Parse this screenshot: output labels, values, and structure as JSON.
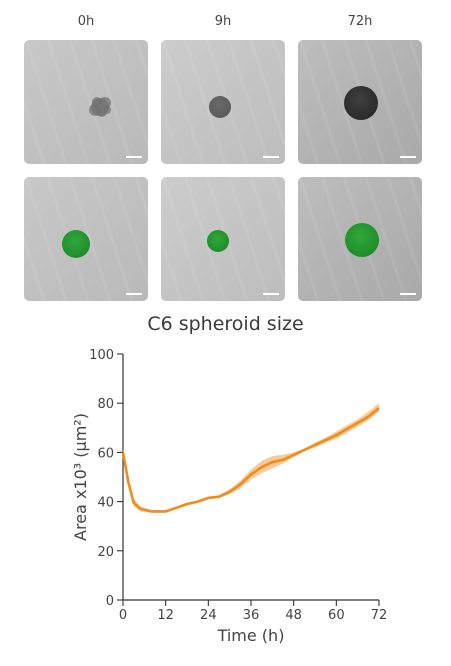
{
  "image_panels": {
    "time_labels": [
      "0h",
      "9h",
      "72h"
    ],
    "rows": [
      "brightfield",
      "fluorescence"
    ],
    "fluorescence_color": "#1f8c2a",
    "scale_bar": "white"
  },
  "chart_data": {
    "type": "line",
    "title": "C6 spheroid size",
    "xlabel": "Time (h)",
    "ylabel": "Area x10³ (µm²)",
    "xlim": [
      0,
      72
    ],
    "ylim": [
      0,
      100
    ],
    "xticks": [
      0,
      12,
      24,
      36,
      48,
      60,
      72
    ],
    "yticks": [
      0,
      20,
      40,
      60,
      80,
      100
    ],
    "grid": false,
    "series": [
      {
        "color": "#f08c1e",
        "band_color": "#f5b877",
        "x": [
          0,
          1.5,
          3,
          5,
          8,
          12,
          15,
          18,
          21,
          24,
          27,
          30,
          33,
          36,
          39,
          42,
          45,
          48,
          51,
          54,
          57,
          60,
          63,
          66,
          69,
          72
        ],
        "y": [
          60,
          48,
          39.5,
          37,
          36,
          36,
          37.5,
          39,
          40,
          41.5,
          42,
          44,
          47,
          51,
          54,
          56,
          57,
          59,
          61,
          63,
          65,
          67,
          69.5,
          72,
          74.5,
          78
        ],
        "lower": [
          58.5,
          46.5,
          38,
          36,
          35.5,
          35.5,
          37,
          38.5,
          39.5,
          41,
          41.5,
          43,
          45.5,
          49,
          51.5,
          53.5,
          55.5,
          58,
          60.5,
          62,
          64,
          65.5,
          68,
          70.5,
          73,
          76.5
        ],
        "upper": [
          61.5,
          49.5,
          41,
          38,
          36.5,
          36.5,
          38,
          39.5,
          40.5,
          42,
          42.5,
          45,
          48.5,
          53,
          56.5,
          58.5,
          59,
          60,
          61.5,
          64,
          66,
          68.5,
          71,
          73.5,
          76.5,
          80
        ]
      }
    ]
  }
}
